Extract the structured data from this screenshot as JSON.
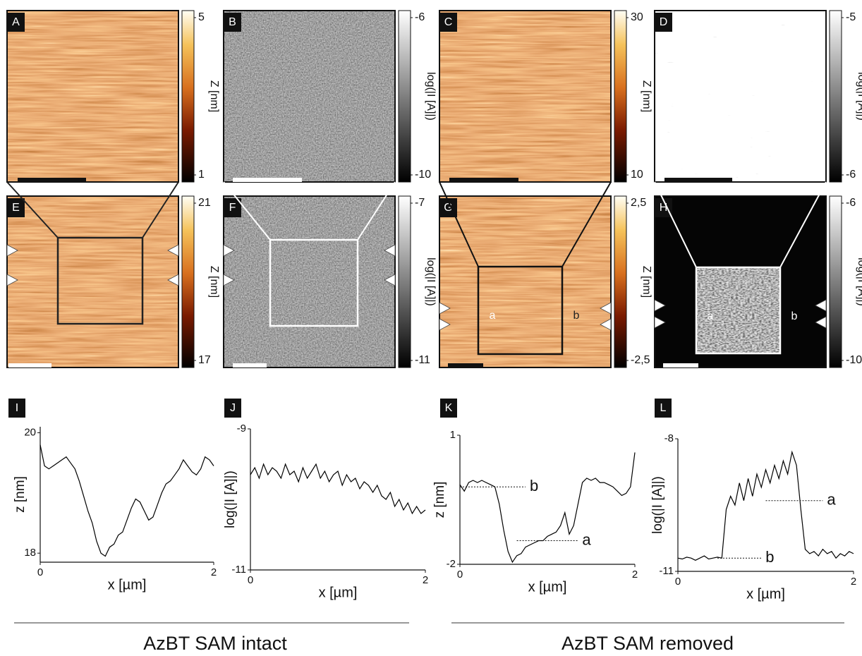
{
  "image_panels": [
    {
      "label": "A",
      "colormap": "afmhot",
      "colorbar": {
        "title": "Z [nm]",
        "ticks": [
          5,
          1
        ]
      }
    },
    {
      "label": "B",
      "colormap": "gray",
      "colorbar": {
        "title": "log(|I [A]|)",
        "ticks": [
          -6,
          -10
        ]
      }
    },
    {
      "label": "C",
      "colormap": "afmhot",
      "colorbar": {
        "title": "Z [nm]",
        "ticks": [
          30,
          10
        ]
      }
    },
    {
      "label": "D",
      "colormap": "gray",
      "colorbar": {
        "title": "log(|I [A]|)",
        "ticks": [
          -5,
          -6
        ]
      }
    },
    {
      "label": "E",
      "colormap": "afmhot",
      "colorbar": {
        "title": "Z [nm]",
        "ticks": [
          21,
          17
        ]
      }
    },
    {
      "label": "F",
      "colormap": "gray",
      "colorbar": {
        "title": "log(|I [A]|)",
        "ticks": [
          -7,
          -11
        ]
      }
    },
    {
      "label": "G",
      "colormap": "afmhot",
      "colorbar": {
        "title": "Z [nm]",
        "ticks": [
          {
            "value": 2.5,
            "label": "2,5"
          },
          {
            "value": -2.5,
            "label": "-2,5"
          }
        ]
      },
      "region_labels": [
        "a",
        "b"
      ]
    },
    {
      "label": "H",
      "colormap": "gray",
      "colorbar": {
        "title": "log(|I [A]|)",
        "ticks": [
          -6,
          -10
        ]
      },
      "region_labels": [
        "a",
        "b"
      ]
    }
  ],
  "chart_data": [
    {
      "type": "line",
      "label": "I",
      "xlabel": "x [µm]",
      "ylabel": "z [nm]",
      "color": "#000000",
      "x": [
        0,
        0.05,
        0.1,
        0.15,
        0.2,
        0.25,
        0.3,
        0.35,
        0.4,
        0.45,
        0.5,
        0.55,
        0.6,
        0.65,
        0.7,
        0.75,
        0.8,
        0.85,
        0.9,
        0.95,
        1,
        1.05,
        1.1,
        1.15,
        1.2,
        1.25,
        1.3,
        1.35,
        1.4,
        1.45,
        1.5,
        1.55,
        1.6,
        1.65,
        1.7,
        1.75,
        1.8,
        1.85,
        1.9,
        1.95,
        2
      ],
      "values": [
        19.8,
        19.45,
        19.4,
        19.45,
        19.5,
        19.55,
        19.6,
        19.5,
        19.4,
        19.2,
        18.95,
        18.7,
        18.5,
        18.2,
        18.0,
        17.95,
        18.1,
        18.15,
        18.3,
        18.35,
        18.55,
        18.75,
        18.9,
        18.85,
        18.7,
        18.55,
        18.6,
        18.8,
        19.0,
        19.15,
        19.2,
        19.3,
        19.4,
        19.55,
        19.45,
        19.35,
        19.3,
        19.4,
        19.6,
        19.55,
        19.45
      ],
      "xlim": [
        0,
        2
      ],
      "xticks": [
        0,
        2
      ],
      "ylim": [
        17.85,
        20.1
      ],
      "yticks": [
        18,
        20
      ]
    },
    {
      "type": "line",
      "label": "J",
      "xlabel": "x [µm]",
      "ylabel": "log(|I [A]|)",
      "color": "#000000",
      "x": [
        0,
        0.05,
        0.1,
        0.15,
        0.2,
        0.25,
        0.3,
        0.35,
        0.4,
        0.45,
        0.5,
        0.55,
        0.6,
        0.65,
        0.7,
        0.75,
        0.8,
        0.85,
        0.9,
        0.95,
        1,
        1.05,
        1.1,
        1.15,
        1.2,
        1.25,
        1.3,
        1.35,
        1.4,
        1.45,
        1.5,
        1.55,
        1.6,
        1.65,
        1.7,
        1.75,
        1.8,
        1.85,
        1.9,
        1.95,
        2
      ],
      "values": [
        -9.65,
        -9.55,
        -9.7,
        -9.5,
        -9.65,
        -9.55,
        -9.6,
        -9.7,
        -9.5,
        -9.65,
        -9.6,
        -9.75,
        -9.55,
        -9.7,
        -9.6,
        -9.5,
        -9.7,
        -9.6,
        -9.75,
        -9.65,
        -9.6,
        -9.8,
        -9.65,
        -9.75,
        -9.7,
        -9.85,
        -9.75,
        -9.8,
        -9.9,
        -9.8,
        -9.95,
        -10.0,
        -9.9,
        -10.1,
        -10.0,
        -10.15,
        -10.05,
        -10.2,
        -10.1,
        -10.2,
        -10.15
      ],
      "xlim": [
        0,
        2
      ],
      "xticks": [
        0,
        2
      ],
      "ylim": [
        -11,
        -9
      ],
      "yticks": [
        -9,
        -11
      ]
    },
    {
      "type": "line",
      "label": "K",
      "xlabel": "x [µm]",
      "ylabel": "z [nm]",
      "color": "#000000",
      "x": [
        0,
        0.05,
        0.1,
        0.15,
        0.2,
        0.25,
        0.3,
        0.35,
        0.4,
        0.45,
        0.5,
        0.55,
        0.6,
        0.65,
        0.7,
        0.75,
        0.8,
        0.85,
        0.9,
        0.95,
        1,
        1.05,
        1.1,
        1.15,
        1.2,
        1.25,
        1.3,
        1.35,
        1.4,
        1.45,
        1.5,
        1.55,
        1.6,
        1.65,
        1.7,
        1.75,
        1.8,
        1.85,
        1.9,
        1.95,
        2
      ],
      "values": [
        -0.15,
        -0.3,
        -0.1,
        -0.05,
        -0.1,
        -0.05,
        -0.1,
        -0.15,
        -0.2,
        -0.6,
        -1.2,
        -1.7,
        -1.95,
        -1.8,
        -1.75,
        -1.6,
        -1.55,
        -1.5,
        -1.45,
        -1.45,
        -1.35,
        -1.3,
        -1.25,
        -1.1,
        -0.8,
        -1.3,
        -1.1,
        -0.6,
        -0.1,
        0,
        -0.05,
        0,
        -0.1,
        -0.1,
        -0.15,
        -0.2,
        -0.3,
        -0.4,
        -0.35,
        -0.2,
        0.6
      ],
      "xlim": [
        0,
        2
      ],
      "xticks": [
        0,
        2
      ],
      "ylim": [
        -2,
        1
      ],
      "yticks": [
        1,
        -2
      ],
      "annotations": [
        {
          "text": "b",
          "y": -0.2
        },
        {
          "text": "a",
          "y": -1.45
        }
      ]
    },
    {
      "type": "line",
      "label": "L",
      "xlabel": "x [µm]",
      "ylabel": "log(|I [A]|)",
      "color": "#000000",
      "x": [
        0,
        0.05,
        0.1,
        0.15,
        0.2,
        0.25,
        0.3,
        0.35,
        0.4,
        0.45,
        0.5,
        0.55,
        0.6,
        0.65,
        0.7,
        0.75,
        0.8,
        0.85,
        0.9,
        0.95,
        1,
        1.05,
        1.1,
        1.15,
        1.2,
        1.25,
        1.3,
        1.35,
        1.4,
        1.45,
        1.5,
        1.55,
        1.6,
        1.65,
        1.7,
        1.75,
        1.8,
        1.85,
        1.9,
        1.95,
        2
      ],
      "values": [
        -10.7,
        -10.72,
        -10.68,
        -10.7,
        -10.75,
        -10.7,
        -10.65,
        -10.72,
        -10.7,
        -10.68,
        -10.7,
        -9.6,
        -9.3,
        -9.5,
        -9.0,
        -9.4,
        -8.9,
        -9.3,
        -8.8,
        -9.1,
        -8.7,
        -9.0,
        -8.6,
        -8.9,
        -8.5,
        -8.8,
        -8.3,
        -8.6,
        -9.6,
        -10.5,
        -10.6,
        -10.55,
        -10.65,
        -10.5,
        -10.6,
        -10.55,
        -10.7,
        -10.6,
        -10.65,
        -10.55,
        -10.6
      ],
      "xlim": [
        0,
        2
      ],
      "xticks": [
        0,
        2
      ],
      "ylim": [
        -11,
        -8
      ],
      "yticks": [
        -8,
        -11
      ],
      "annotations": [
        {
          "text": "a",
          "y": -9.4
        },
        {
          "text": "b",
          "y": -10.7
        }
      ]
    }
  ],
  "captions": [
    "AzBT SAM intact",
    "AzBT SAM removed"
  ]
}
